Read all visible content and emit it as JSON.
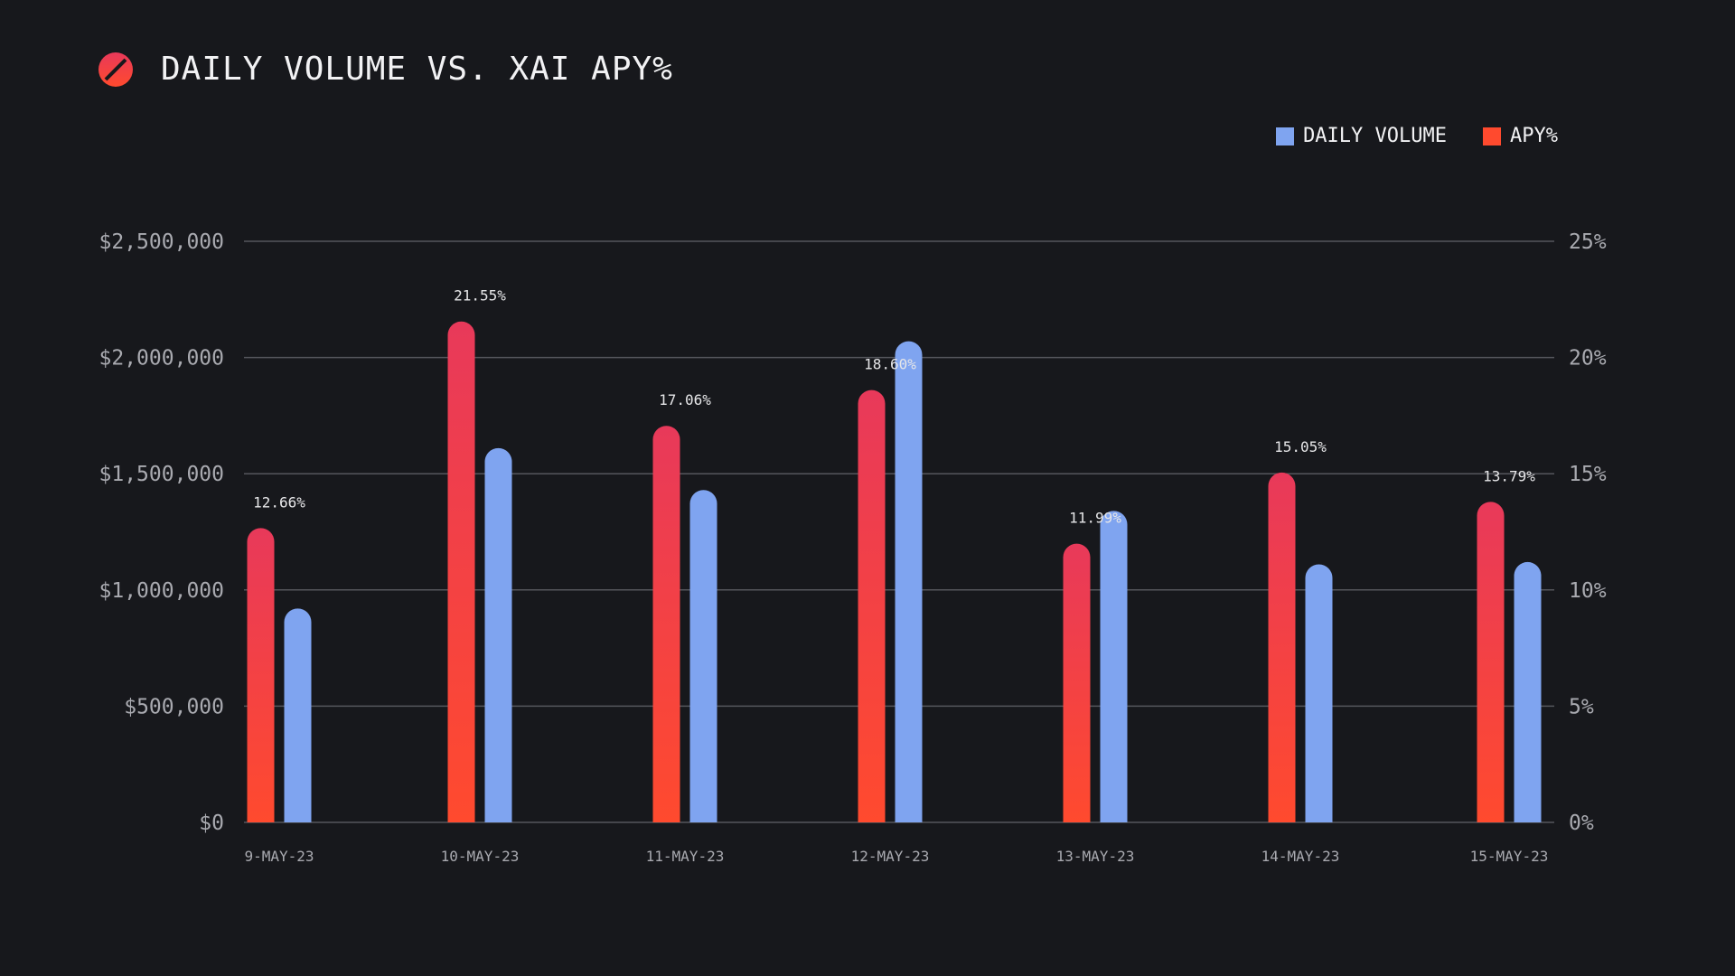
{
  "header": {
    "title": "DAILY VOLUME VS. XAI APY%"
  },
  "legend": {
    "items": [
      {
        "label": "DAILY VOLUME",
        "color": "#7fa4f0"
      },
      {
        "label": "APY%",
        "color": "#ff4a2e"
      }
    ]
  },
  "colors": {
    "background": "#17181c",
    "volume": "#7fa4f0",
    "apy_top": "#e8395a",
    "apy_bottom": "#ff4a2e",
    "grid": "#55565c",
    "axis_text": "#a9aab0"
  },
  "chart_data": {
    "type": "bar",
    "title": "DAILY VOLUME VS. XAI APY%",
    "categories": [
      "9-MAY-23",
      "10-MAY-23",
      "11-MAY-23",
      "12-MAY-23",
      "13-MAY-23",
      "14-MAY-23",
      "15-MAY-23"
    ],
    "series": [
      {
        "name": "APY%",
        "axis": "right",
        "values": [
          12.66,
          21.55,
          17.06,
          18.6,
          11.99,
          15.05,
          13.79
        ],
        "labels": [
          "12.66%",
          "21.55%",
          "17.06%",
          "18.60%",
          "11.99%",
          "15.05%",
          "13.79%"
        ]
      },
      {
        "name": "DAILY VOLUME",
        "axis": "left",
        "values": [
          920000,
          1610000,
          1430000,
          2070000,
          1340000,
          1110000,
          1120000
        ]
      }
    ],
    "y_left": {
      "ylim": [
        0,
        2500000
      ],
      "ticks": [
        0,
        500000,
        1000000,
        1500000,
        2000000,
        2500000
      ],
      "tick_labels": [
        "$0",
        "$500,000",
        "$1,000,000",
        "$1,500,000",
        "$2,000,000",
        "$2,500,000"
      ]
    },
    "y_right": {
      "ylim": [
        0,
        25
      ],
      "ticks": [
        0,
        5,
        10,
        15,
        20,
        25
      ],
      "tick_labels": [
        "0%",
        "5%",
        "10%",
        "15%",
        "20%",
        "25%"
      ]
    },
    "grid": true,
    "legend_position": "top-right",
    "xlabel": "",
    "ylabel": ""
  }
}
